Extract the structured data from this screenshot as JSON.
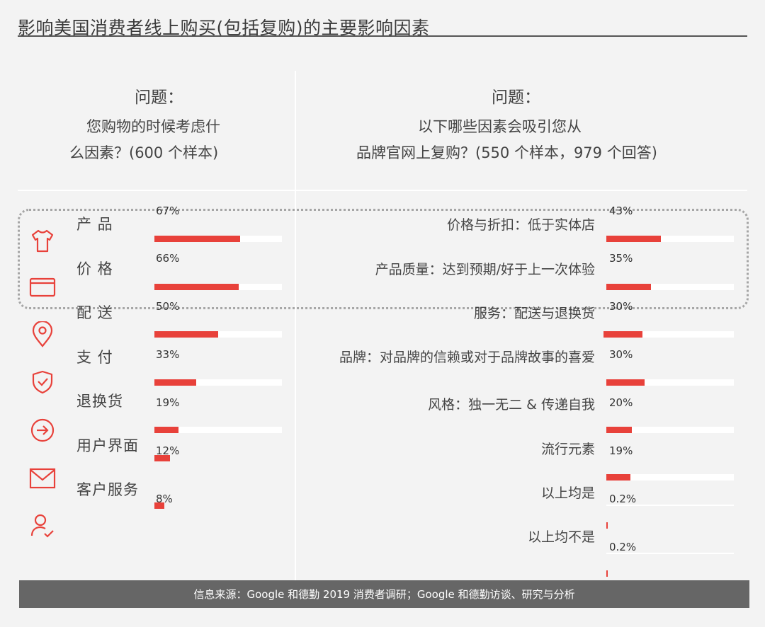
{
  "title": "影响美国消费者线上购买(包括复购)的主要影响因素",
  "left": {
    "question_label": "问题：",
    "question_line1": "您购物的时候考虑什",
    "question_line2": "么因素？(600 个样本)"
  },
  "right": {
    "question_label": "问题：",
    "question_line1": "以下哪些因素会吸引您从",
    "question_line2": "品牌官网上复购？(550 个样本，979 个回答)"
  },
  "icons": [
    "tshirt-icon",
    "card-icon",
    "location-pin-icon",
    "shield-check-icon",
    "return-arrow-icon",
    "mail-icon",
    "user-check-icon"
  ],
  "colors": {
    "bar": "#e8413a",
    "track": "#ffffff",
    "footer_bg": "#666666"
  },
  "chart_data": [
    {
      "type": "bar",
      "orientation": "horizontal",
      "categories": [
        "产 品",
        "价 格",
        "配 送",
        "支 付",
        "退换货",
        "用户界面",
        "客户服务"
      ],
      "value_labels": [
        "67%",
        "66%",
        "50%",
        "33%",
        "19%",
        "12%",
        "8%"
      ],
      "values": [
        67,
        66,
        50,
        33,
        19,
        12,
        8
      ],
      "xlim": [
        0,
        100
      ]
    },
    {
      "type": "bar",
      "orientation": "horizontal",
      "categories": [
        "价格与折扣：低于实体店",
        "产品质量：达到预期/好于上一次体验",
        "服务：配送与退换货",
        "品牌：对品牌的信赖或对于品牌故事的喜爱",
        "风格：独一无二 & 传递自我",
        "流行元素",
        "以上均是",
        "以上均不是"
      ],
      "value_labels": [
        "43%",
        "35%",
        "30%",
        "30%",
        "20%",
        "19%",
        "0.2%",
        "0.2%"
      ],
      "values": [
        43,
        35,
        30,
        30,
        20,
        19,
        0.2,
        0.2
      ],
      "xlim": [
        0,
        100
      ]
    }
  ],
  "footer": "信息来源：Google 和德勤 2019 消费者调研；Google 和德勤访谈、研究与分析"
}
